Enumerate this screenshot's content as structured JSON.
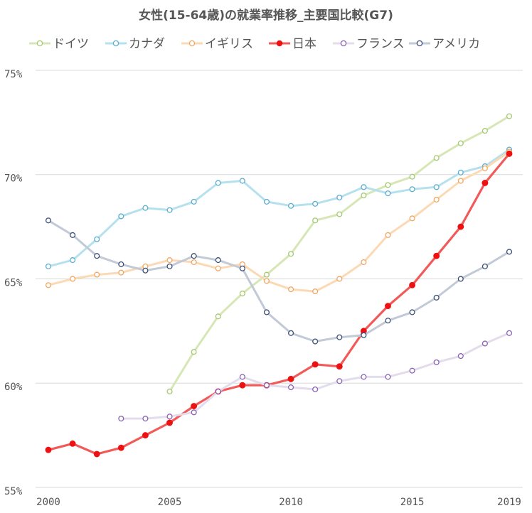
{
  "chart_data": {
    "type": "line",
    "title": "女性(15-64歳)の就業率推移_主要国比較(G7)",
    "xlabel": "",
    "ylabel": "",
    "x": [
      2000,
      2001,
      2002,
      2003,
      2004,
      2005,
      2006,
      2007,
      2008,
      2009,
      2010,
      2011,
      2012,
      2013,
      2014,
      2015,
      2016,
      2017,
      2018,
      2019
    ],
    "x_ticks": [
      2000,
      2005,
      2010,
      2015,
      2019
    ],
    "x_tick_labels": [
      "2000",
      "2005",
      "2010",
      "2015",
      "2019"
    ],
    "ylim": [
      55,
      76.6
    ],
    "y_ticks": [
      55,
      60,
      65,
      70,
      75
    ],
    "y_tick_labels": [
      "55%",
      "60%",
      "65%",
      "70%",
      "75%"
    ],
    "grid": true,
    "legend_position": "top",
    "series": [
      {
        "name": "ドイツ",
        "line_color": "#d6e6b4",
        "marker_edge": "#a5c972",
        "marker_fill": "#ffffff",
        "filled": false,
        "values": [
          null,
          null,
          null,
          null,
          null,
          59.6,
          61.5,
          63.2,
          64.3,
          65.2,
          66.2,
          67.8,
          68.1,
          69.0,
          69.5,
          69.9,
          70.8,
          71.5,
          72.1,
          72.8
        ]
      },
      {
        "name": "カナダ",
        "line_color": "#b5e1ee",
        "marker_edge": "#5aaed0",
        "marker_fill": "#ffffff",
        "filled": false,
        "values": [
          65.6,
          65.9,
          66.9,
          68.0,
          68.4,
          68.3,
          68.7,
          69.6,
          69.7,
          68.7,
          68.5,
          68.6,
          68.9,
          69.4,
          69.1,
          69.3,
          69.4,
          70.1,
          70.4,
          71.2
        ]
      },
      {
        "name": "イギリス",
        "line_color": "#fcd9b5",
        "marker_edge": "#f2a763",
        "marker_fill": "#ffffff",
        "filled": false,
        "values": [
          64.7,
          65.0,
          65.2,
          65.3,
          65.6,
          65.9,
          65.8,
          65.5,
          65.7,
          64.9,
          64.5,
          64.4,
          65.0,
          65.8,
          67.1,
          67.9,
          68.8,
          69.7,
          70.3,
          71.1
        ]
      },
      {
        "name": "日本",
        "line_color": "#f25a5a",
        "marker_edge": "#ee1111",
        "marker_fill": "#ee1111",
        "filled": true,
        "values": [
          56.8,
          57.1,
          56.6,
          56.9,
          57.5,
          58.1,
          58.9,
          59.6,
          59.9,
          59.9,
          60.2,
          60.9,
          60.8,
          62.5,
          63.7,
          64.7,
          66.1,
          67.5,
          69.6,
          71.0
        ]
      },
      {
        "name": "フランス",
        "line_color": "#e3dced",
        "marker_edge": "#8a62b5",
        "marker_fill": "#ffffff",
        "filled": false,
        "values": [
          null,
          null,
          null,
          58.3,
          58.3,
          58.4,
          58.6,
          59.6,
          60.3,
          59.9,
          59.8,
          59.7,
          60.1,
          60.3,
          60.3,
          60.6,
          61.0,
          61.3,
          61.9,
          62.4
        ]
      },
      {
        "name": "アメリカ",
        "line_color": "#c2c9d7",
        "marker_edge": "#3b4f79",
        "marker_fill": "#ffffff",
        "filled": false,
        "values": [
          67.8,
          67.1,
          66.1,
          65.7,
          65.4,
          65.6,
          66.1,
          65.9,
          65.5,
          63.4,
          62.4,
          62.0,
          62.2,
          62.3,
          63.0,
          63.4,
          64.1,
          65.0,
          65.6,
          66.3
        ]
      }
    ]
  }
}
